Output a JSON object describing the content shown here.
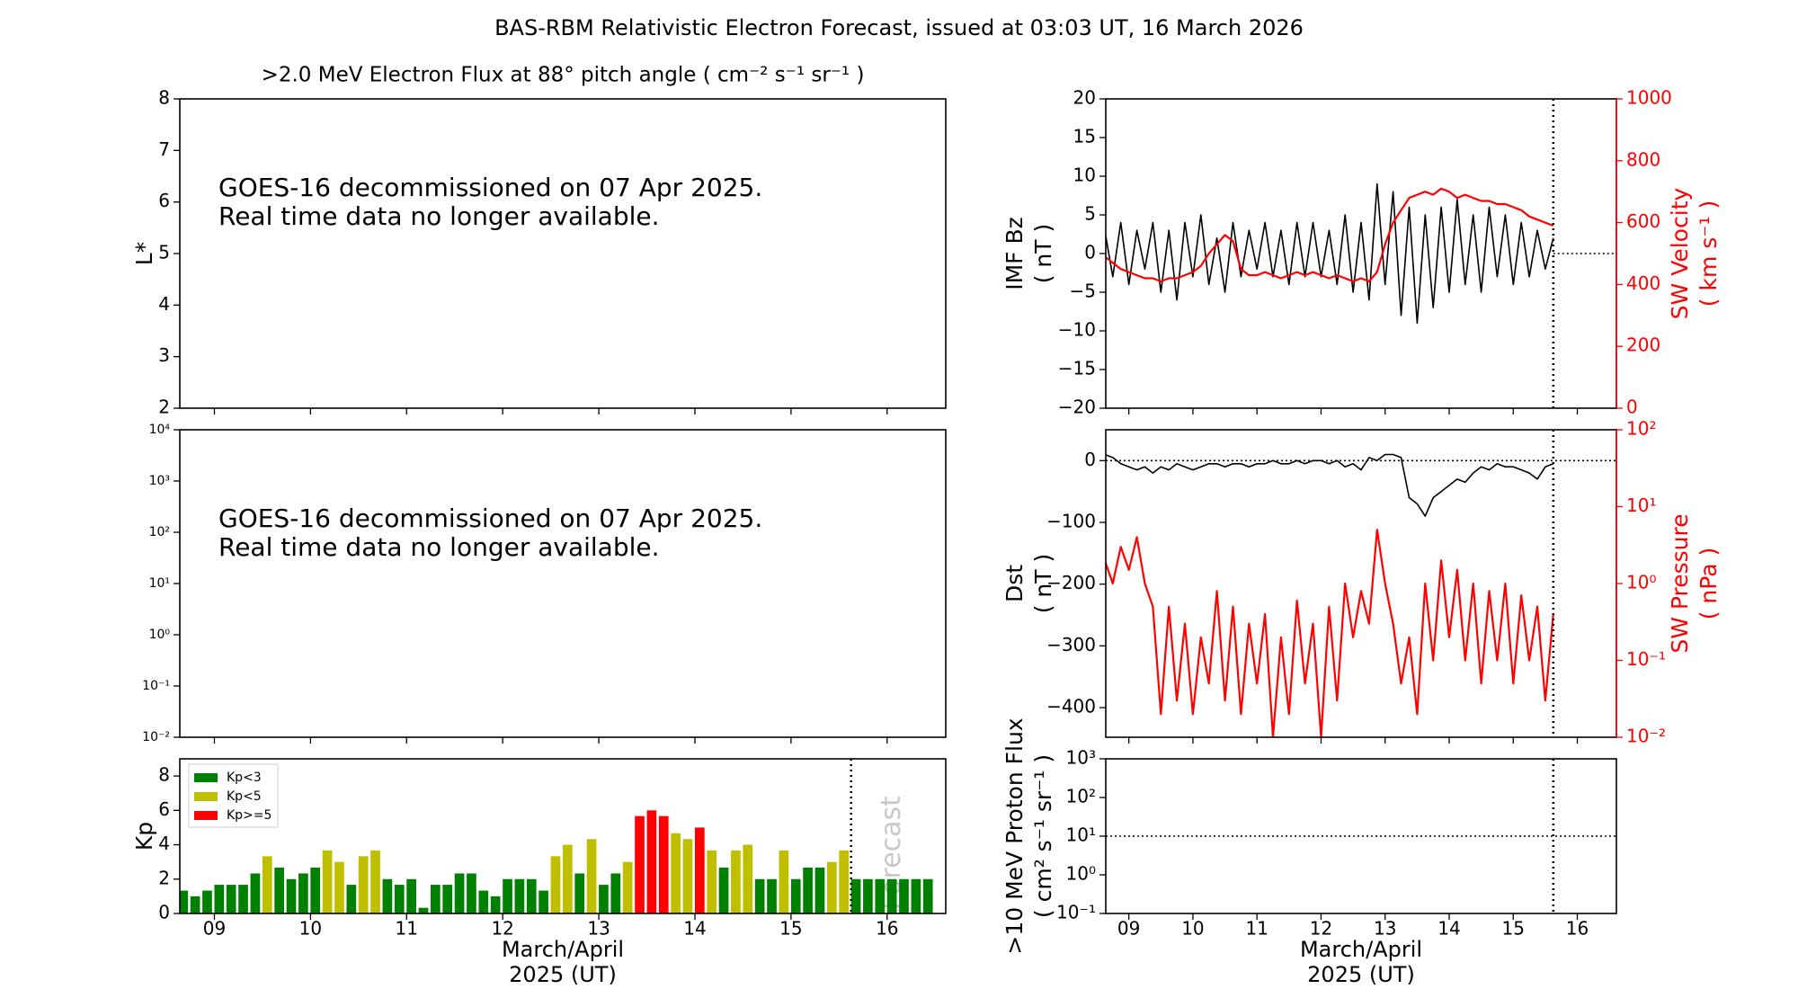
{
  "title": "BAS-RBM Relativistic Electron Forecast, issued at 03:03 UT, 16 March 2026",
  "chart_data": [
    {
      "type": "empty",
      "title": ">2.0 MeV Electron Flux at 88° pitch angle ( cm⁻² s⁻¹ sr⁻¹ )",
      "ylabel": [
        "L*"
      ],
      "ylim": [
        2,
        8
      ],
      "yticks": [
        2,
        3,
        4,
        5,
        6,
        7,
        8
      ],
      "xlim": [
        8.64,
        16.61
      ],
      "xticks": [
        9,
        10,
        11,
        12,
        13,
        14,
        15,
        16
      ],
      "annotation": [
        "GOES-16 decommissioned on 07 Apr 2025.",
        "Real time data no longer available."
      ]
    },
    {
      "type": "empty",
      "ylog": true,
      "ylim": [
        0.01,
        10000
      ],
      "yticks": [
        {
          "value": 0.01,
          "label": "10⁻²"
        },
        {
          "value": 0.1,
          "label": "10⁻¹"
        },
        {
          "value": 1,
          "label": "10⁰"
        },
        {
          "value": 10,
          "label": "10¹"
        },
        {
          "value": 100,
          "label": "10²"
        },
        {
          "value": 1000,
          "label": "10³"
        },
        {
          "value": 10000,
          "label": "10⁴"
        }
      ],
      "xlim": [
        8.64,
        16.61
      ],
      "xticks": [
        9,
        10,
        11,
        12,
        13,
        14,
        15,
        16
      ],
      "annotation": [
        "GOES-16 decommissioned on 07 Apr 2025.",
        "Real time data no longer available."
      ]
    },
    {
      "type": "bar",
      "ylabel": [
        "Kp"
      ],
      "xlabel": [
        "March/April",
        "2025 (UT)"
      ],
      "ylim": [
        0,
        9
      ],
      "yticks": [
        0,
        2,
        4,
        6,
        8
      ],
      "xlim": [
        8.64,
        16.61
      ],
      "xticks": [
        {
          "value": 9,
          "label": "09"
        },
        10,
        11,
        12,
        13,
        14,
        15,
        16
      ],
      "forecast_start": 15.625,
      "annotation": [
        "Forecast"
      ],
      "legend": "upper left",
      "x": [
        8.625,
        8.75,
        8.875,
        9,
        9.125,
        9.25,
        9.375,
        9.5,
        9.625,
        9.75,
        9.875,
        10,
        10.125,
        10.25,
        10.375,
        10.5,
        10.625,
        10.75,
        10.875,
        11,
        11.125,
        11.25,
        11.375,
        11.5,
        11.625,
        11.75,
        11.875,
        12,
        12.125,
        12.25,
        12.375,
        12.5,
        12.625,
        12.75,
        12.875,
        13,
        13.125,
        13.25,
        13.375,
        13.5,
        13.625,
        13.75,
        13.875,
        14,
        14.125,
        14.25,
        14.375,
        14.5,
        14.625,
        14.75,
        14.875,
        15,
        15.125,
        15.25,
        15.375,
        15.5,
        15.625,
        15.75,
        15.875,
        16,
        16.125,
        16.25,
        16.375
      ],
      "series": [
        {
          "name": "Kp<3",
          "color": "#008000",
          "values": [
            1.33,
            1,
            1.33,
            1.67,
            1.67,
            1.67,
            2.33,
            null,
            2.67,
            2,
            2.33,
            2.67,
            null,
            null,
            1.67,
            null,
            null,
            2,
            1.67,
            2,
            0.33,
            1.67,
            1.67,
            2.33,
            2.33,
            1.33,
            1,
            2,
            2,
            2,
            1.33,
            null,
            null,
            2.33,
            null,
            1.67,
            2.33,
            null,
            null,
            null,
            null,
            null,
            null,
            null,
            null,
            2.67,
            null,
            null,
            2,
            2,
            null,
            2,
            2.67,
            2.67,
            null,
            null,
            2,
            2,
            2,
            2,
            2,
            2,
            2
          ]
        },
        {
          "name": "Kp<5",
          "color": "#bfbf00",
          "values": [
            null,
            null,
            null,
            null,
            null,
            null,
            null,
            3.33,
            null,
            null,
            null,
            null,
            3.67,
            3,
            null,
            3.33,
            3.67,
            null,
            null,
            null,
            null,
            null,
            null,
            null,
            null,
            null,
            null,
            null,
            null,
            null,
            null,
            3.33,
            4,
            null,
            4.33,
            null,
            null,
            3,
            null,
            null,
            null,
            4.67,
            4.33,
            null,
            3.67,
            null,
            3.67,
            4,
            null,
            null,
            3.67,
            null,
            null,
            null,
            3,
            3.67,
            null,
            null,
            null,
            null,
            null,
            null,
            null
          ]
        },
        {
          "name": "Kp>=5",
          "color": "#ff0000",
          "values": [
            null,
            null,
            null,
            null,
            null,
            null,
            null,
            null,
            null,
            null,
            null,
            null,
            null,
            null,
            null,
            null,
            null,
            null,
            null,
            null,
            null,
            null,
            null,
            null,
            null,
            null,
            null,
            null,
            null,
            null,
            null,
            null,
            null,
            null,
            null,
            null,
            null,
            null,
            5.67,
            6,
            5.67,
            null,
            null,
            5,
            null,
            null,
            null,
            null,
            null,
            null,
            null,
            null,
            null,
            null,
            null,
            null,
            null,
            null,
            null,
            null,
            null,
            null,
            null
          ]
        }
      ]
    },
    {
      "type": "line",
      "ylabel": [
        "IMF Bz",
        "( nT )"
      ],
      "y2label": [
        "SW Velocity",
        "( km s⁻¹ )"
      ],
      "y2color": "#ff0000",
      "ylim": [
        -20,
        20
      ],
      "yticks": [
        {
          "value": -20,
          "label": "−20"
        },
        {
          "value": -15,
          "label": "−15"
        },
        {
          "value": -10,
          "label": "−10"
        },
        {
          "value": -5,
          "label": "−5"
        },
        0,
        5,
        10,
        15,
        20
      ],
      "y2lim": [
        0,
        1000
      ],
      "y2ticks": [
        0,
        200,
        400,
        600,
        800,
        1000
      ],
      "xlim": [
        8.64,
        16.61
      ],
      "xticks": [
        9,
        10,
        11,
        12,
        13,
        14,
        15,
        16
      ],
      "forecast_start": 15.625,
      "reference_line": 0,
      "reference_after_forecast": true,
      "x": [
        8.625,
        8.75,
        8.875,
        9,
        9.125,
        9.25,
        9.375,
        9.5,
        9.625,
        9.75,
        9.875,
        10,
        10.125,
        10.25,
        10.375,
        10.5,
        10.625,
        10.75,
        10.875,
        11,
        11.125,
        11.25,
        11.375,
        11.5,
        11.625,
        11.75,
        11.875,
        12,
        12.125,
        12.25,
        12.375,
        12.5,
        12.625,
        12.75,
        12.875,
        13,
        13.125,
        13.25,
        13.375,
        13.5,
        13.625,
        13.75,
        13.875,
        14,
        14.125,
        14.25,
        14.375,
        14.5,
        14.625,
        14.75,
        14.875,
        15,
        15.125,
        15.25,
        15.375,
        15.5,
        15.625
      ],
      "series": [
        {
          "name": "IMF Bz",
          "color": "#000000",
          "axis": "y",
          "values": [
            3,
            -3,
            4,
            -4,
            3,
            -2,
            4,
            -5,
            3,
            -6,
            4,
            -3,
            5,
            -4,
            2,
            -5,
            4,
            -3,
            3,
            -2,
            4,
            -3,
            3,
            -4,
            4,
            -3,
            4,
            -3,
            3,
            -4,
            5,
            -5,
            4,
            -6,
            9,
            -4,
            8,
            -8,
            6,
            -9,
            5,
            -7,
            6,
            -5,
            7,
            -4,
            5,
            -5,
            6,
            -3,
            5,
            -4,
            4,
            -3,
            3,
            -2,
            2
          ]
        },
        {
          "name": "SW Velocity",
          "color": "#ff0000",
          "axis": "y2",
          "values": [
            490,
            470,
            450,
            440,
            430,
            420,
            420,
            410,
            420,
            420,
            430,
            440,
            460,
            500,
            530,
            560,
            540,
            450,
            430,
            430,
            440,
            430,
            420,
            430,
            440,
            430,
            440,
            430,
            420,
            430,
            420,
            410,
            420,
            410,
            440,
            530,
            600,
            640,
            680,
            690,
            700,
            690,
            710,
            700,
            680,
            690,
            680,
            670,
            670,
            660,
            660,
            650,
            640,
            620,
            610,
            600,
            590
          ]
        }
      ]
    },
    {
      "type": "line",
      "ylabel": [
        "Dst",
        "( nT )"
      ],
      "y2label": [
        "SW Pressure",
        "( nPa )"
      ],
      "y2color": "#ff0000",
      "y2log": true,
      "ylim": [
        -448,
        50
      ],
      "yticks": [
        {
          "value": -400,
          "label": "−400"
        },
        {
          "value": -300,
          "label": "−300"
        },
        {
          "value": -200,
          "label": "−200"
        },
        {
          "value": -100,
          "label": "−100"
        },
        0
      ],
      "y2lim": [
        0.01,
        100
      ],
      "y2ticks": [
        {
          "value": 0.01,
          "label": "10⁻²"
        },
        {
          "value": 0.1,
          "label": "10⁻¹"
        },
        {
          "value": 1,
          "label": "10⁰"
        },
        {
          "value": 10,
          "label": "10¹"
        },
        {
          "value": 100,
          "label": "10²"
        }
      ],
      "xlim": [
        8.64,
        16.61
      ],
      "xticks": [
        9,
        10,
        11,
        12,
        13,
        14,
        15,
        16
      ],
      "forecast_start": 15.625,
      "reference_line": 0,
      "x": [
        8.625,
        8.75,
        8.875,
        9,
        9.125,
        9.25,
        9.375,
        9.5,
        9.625,
        9.75,
        9.875,
        10,
        10.125,
        10.25,
        10.375,
        10.5,
        10.625,
        10.75,
        10.875,
        11,
        11.125,
        11.25,
        11.375,
        11.5,
        11.625,
        11.75,
        11.875,
        12,
        12.125,
        12.25,
        12.375,
        12.5,
        12.625,
        12.75,
        12.875,
        13,
        13.125,
        13.25,
        13.375,
        13.5,
        13.625,
        13.75,
        13.875,
        14,
        14.125,
        14.25,
        14.375,
        14.5,
        14.625,
        14.75,
        14.875,
        15,
        15.125,
        15.25,
        15.375,
        15.5,
        15.625
      ],
      "series": [
        {
          "name": "Dst",
          "color": "#000000",
          "axis": "y",
          "values": [
            10,
            5,
            -5,
            -10,
            -15,
            -10,
            -20,
            -10,
            -15,
            -5,
            -10,
            -15,
            -10,
            -5,
            -5,
            -10,
            -5,
            -5,
            -10,
            -5,
            -5,
            0,
            -5,
            -5,
            0,
            -5,
            0,
            0,
            -5,
            0,
            -10,
            -5,
            -15,
            5,
            0,
            10,
            10,
            5,
            -60,
            -70,
            -90,
            -60,
            -50,
            -40,
            -30,
            -35,
            -20,
            -10,
            -15,
            -5,
            -10,
            -10,
            -15,
            -20,
            -30,
            -10,
            -5
          ]
        },
        {
          "name": "SW Pressure",
          "color": "#ff0000",
          "axis": "y2",
          "values": [
            2,
            1,
            3,
            1.5,
            4,
            1,
            0.5,
            0.02,
            0.5,
            0.03,
            0.3,
            0.02,
            0.2,
            0.05,
            0.8,
            0.03,
            0.5,
            0.02,
            0.3,
            0.05,
            0.4,
            0.01,
            0.2,
            0.02,
            0.6,
            0.05,
            0.3,
            0.01,
            0.5,
            0.03,
            1,
            0.2,
            0.8,
            0.3,
            5,
            1,
            0.3,
            0.05,
            0.2,
            0.02,
            1,
            0.1,
            2,
            0.2,
            1.5,
            0.1,
            1,
            0.05,
            0.8,
            0.1,
            1,
            0.05,
            0.7,
            0.1,
            0.5,
            0.03,
            0.4
          ]
        }
      ]
    },
    {
      "type": "line",
      "ylabel": [
        ">10 MeV Proton Flux",
        "( cm² s⁻¹ sr⁻¹ )"
      ],
      "xlabel": [
        "March/April",
        "2025 (UT)"
      ],
      "ylog": true,
      "ylim": [
        0.1,
        1000
      ],
      "yticks": [
        {
          "value": 0.1,
          "label": "10⁻¹"
        },
        {
          "value": 1,
          "label": "10⁰"
        },
        {
          "value": 10,
          "label": "10¹"
        },
        {
          "value": 100,
          "label": "10²"
        },
        {
          "value": 1000,
          "label": "10³"
        }
      ],
      "xlim": [
        8.64,
        16.61
      ],
      "xticks": [
        {
          "value": 9,
          "label": "09"
        },
        10,
        11,
        12,
        13,
        14,
        15,
        16
      ],
      "forecast_start": 15.625,
      "reference_line": 10
    }
  ]
}
